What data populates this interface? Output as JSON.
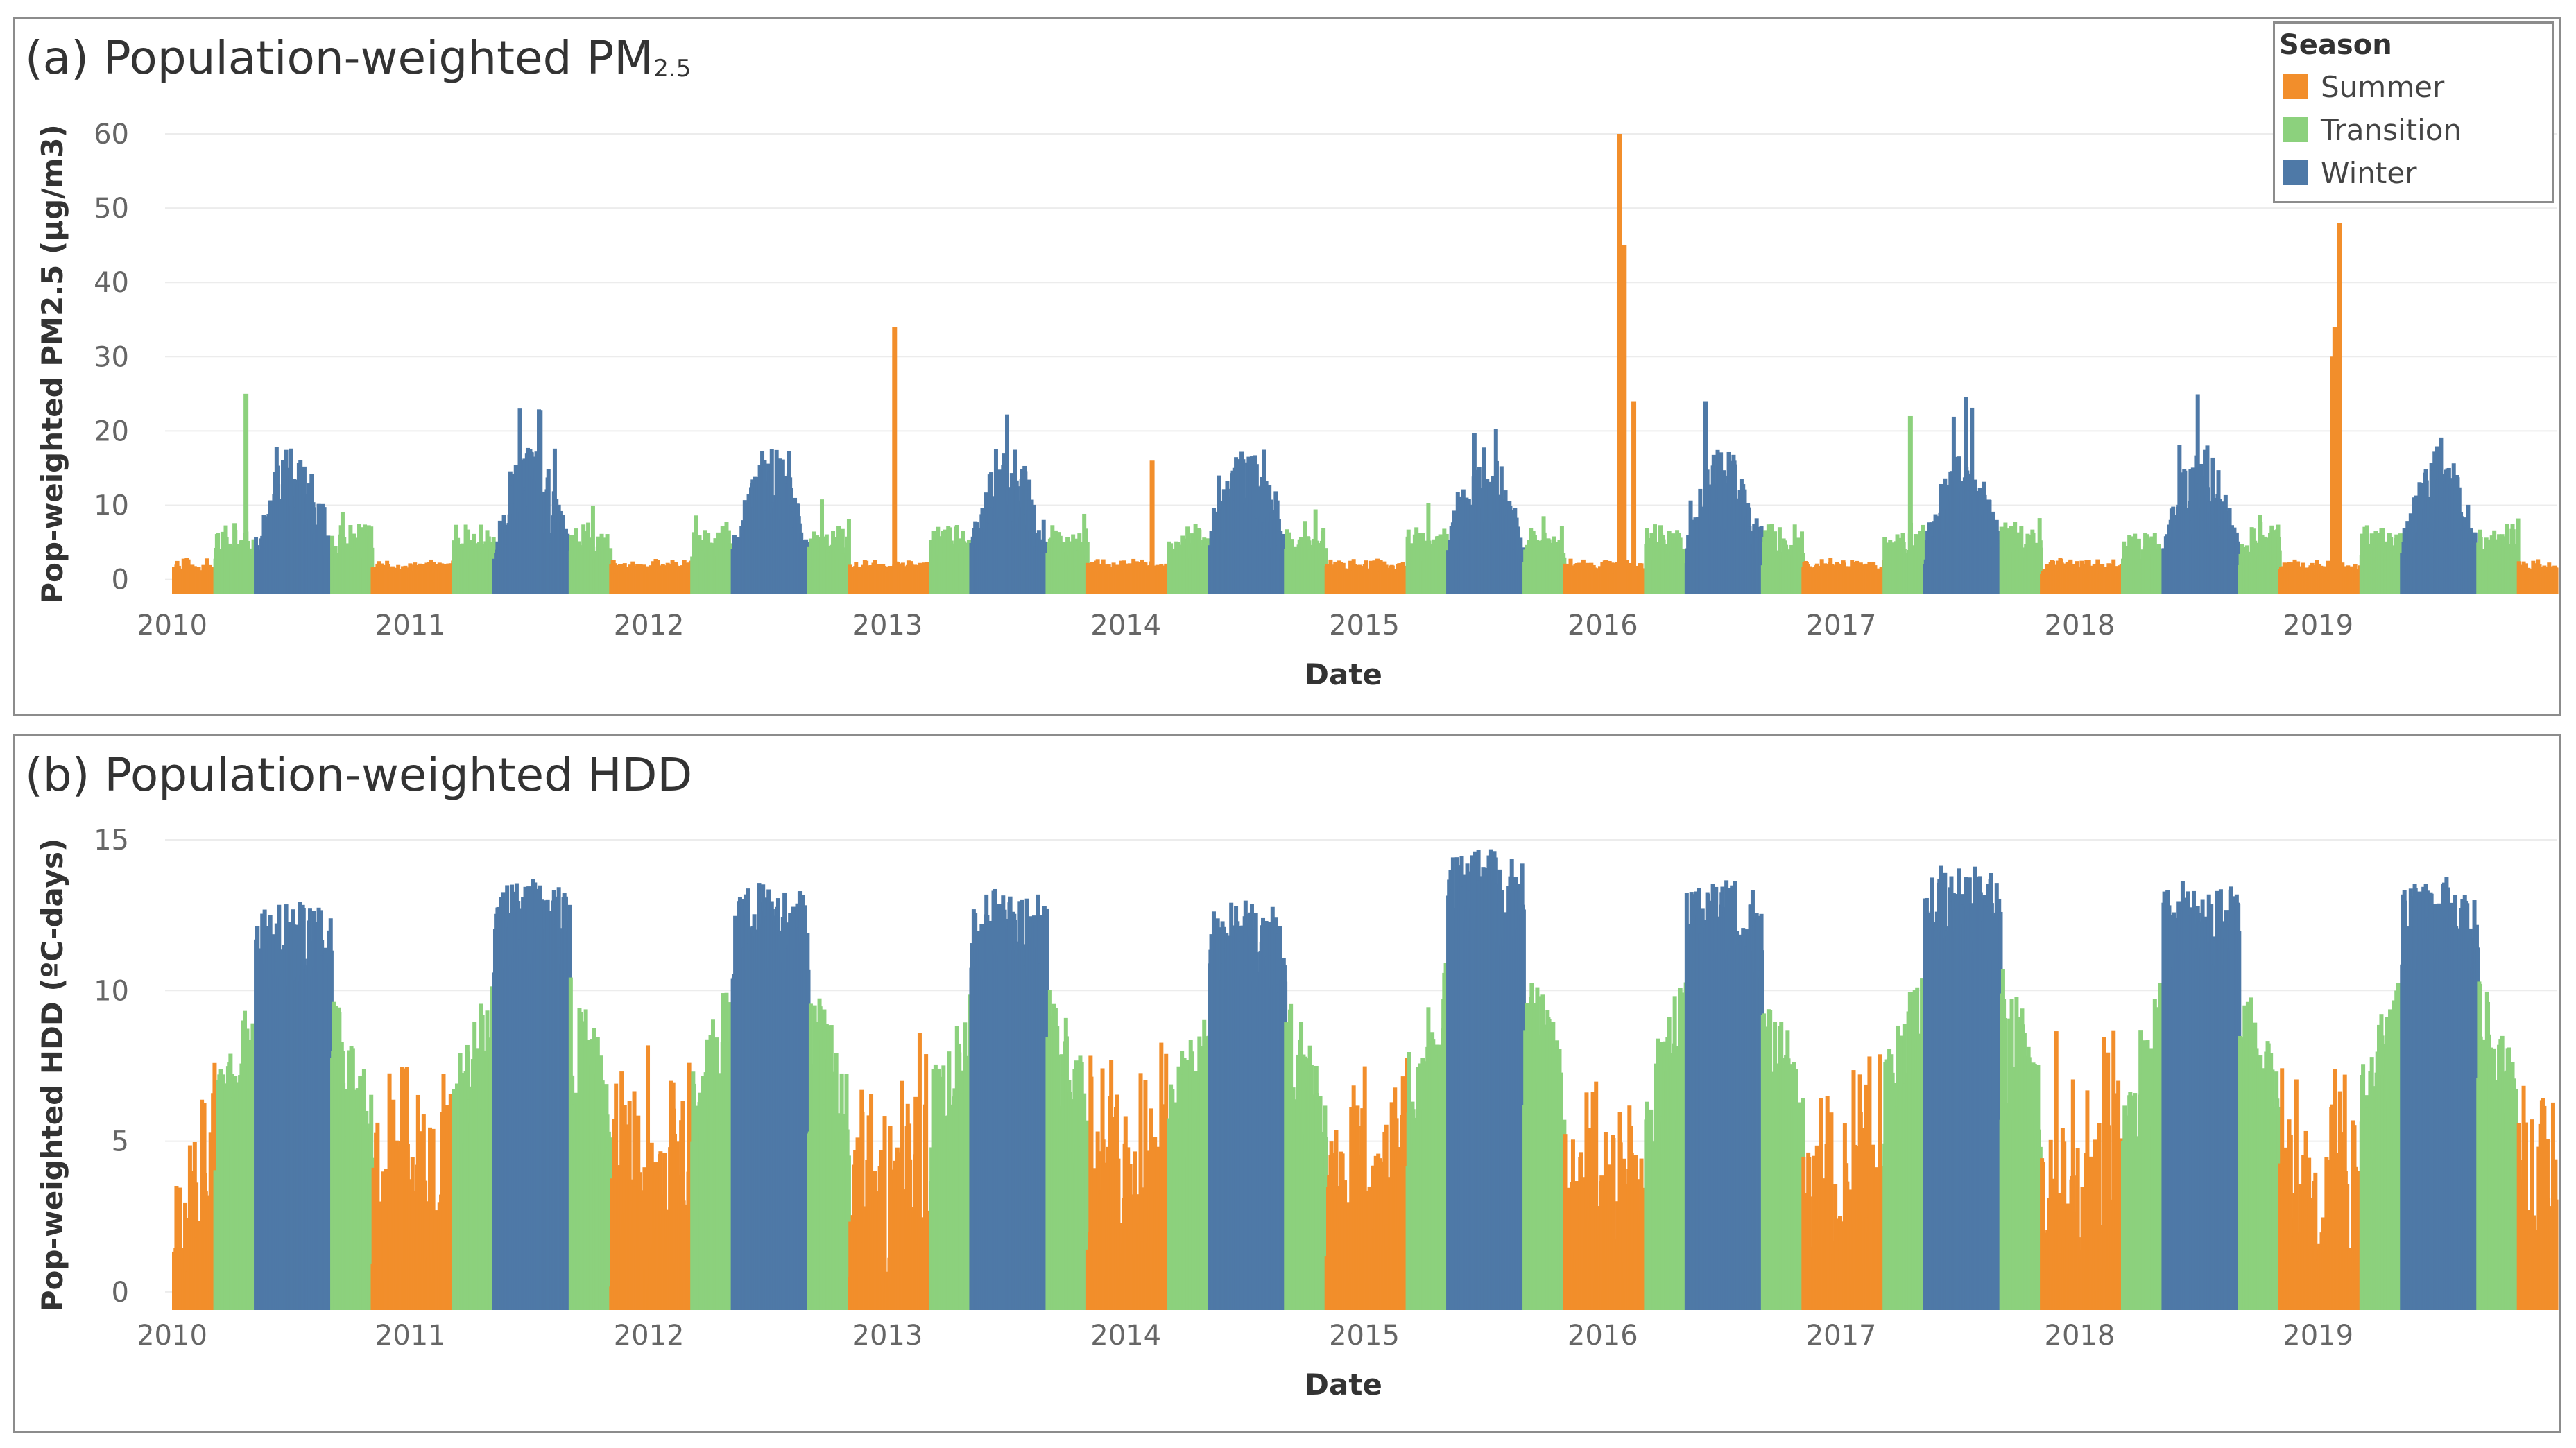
{
  "colors": {
    "Summer": "#f28e2b",
    "Transition": "#8cd17d",
    "Winter": "#4e79a7"
  },
  "legend": {
    "title": "Season",
    "items": [
      {
        "label": "Summer",
        "color": "#f28e2b"
      },
      {
        "label": "Transition",
        "color": "#8cd17d"
      },
      {
        "label": "Winter",
        "color": "#4e79a7"
      }
    ]
  },
  "chart_data": [
    {
      "type": "bar",
      "title_main": "(a) Population-weighted PM",
      "title_sub": "2.5",
      "xlabel": "Date",
      "ylabel": "Pop-weighted PM2.5 (µg/m3)",
      "yticks": [
        0,
        10,
        20,
        30,
        40,
        50,
        60
      ],
      "ylim": [
        -2,
        60
      ],
      "xticks": [
        "2010",
        "2011",
        "2012",
        "2013",
        "2014",
        "2015",
        "2016",
        "2017",
        "2018",
        "2019"
      ],
      "xlim": [
        2010,
        2020
      ],
      "season_pattern": [
        {
          "season": "Summer",
          "start": 0.0,
          "end": 0.17
        },
        {
          "season": "Transition",
          "start": 0.17,
          "end": 0.34
        },
        {
          "season": "Winter",
          "start": 0.34,
          "end": 0.66
        },
        {
          "season": "Transition",
          "start": 0.66,
          "end": 0.83
        },
        {
          "season": "Summer",
          "start": 0.83,
          "end": 1.0
        }
      ],
      "typical_peak": {
        "Summer": 3,
        "Transition": 8,
        "Winter": 18
      },
      "spikes": [
        {
          "x": 2010.3,
          "value": 25,
          "season": "Transition"
        },
        {
          "x": 2013.02,
          "value": 34,
          "season": "Summer"
        },
        {
          "x": 2014.1,
          "value": 16,
          "season": "Summer"
        },
        {
          "x": 2016.06,
          "value": 60,
          "season": "Summer"
        },
        {
          "x": 2016.08,
          "value": 45,
          "season": "Summer"
        },
        {
          "x": 2016.12,
          "value": 24,
          "season": "Summer"
        },
        {
          "x": 2016.42,
          "value": 24,
          "season": "Winter"
        },
        {
          "x": 2017.28,
          "value": 22,
          "season": "Transition"
        },
        {
          "x": 2019.08,
          "value": 48,
          "season": "Summer"
        },
        {
          "x": 2019.06,
          "value": 34,
          "season": "Summer"
        },
        {
          "x": 2019.05,
          "value": 30,
          "season": "Summer"
        }
      ]
    },
    {
      "type": "bar",
      "title_main": "(b) Population-weighted HDD",
      "xlabel": "Date",
      "ylabel": "Pop-weighted HDD (ºC-days)",
      "yticks": [
        0,
        5,
        10,
        15
      ],
      "ylim": [
        -0.6,
        15
      ],
      "xticks": [
        "2010",
        "2011",
        "2012",
        "2013",
        "2014",
        "2015",
        "2016",
        "2017",
        "2018",
        "2019"
      ],
      "xlim": [
        2010,
        2020
      ],
      "season_pattern": [
        {
          "season": "Summer",
          "start": 0.0,
          "end": 0.17
        },
        {
          "season": "Transition",
          "start": 0.17,
          "end": 0.34
        },
        {
          "season": "Winter",
          "start": 0.34,
          "end": 0.66
        },
        {
          "season": "Transition",
          "start": 0.66,
          "end": 0.83
        },
        {
          "season": "Summer",
          "start": 0.83,
          "end": 1.0
        }
      ],
      "yearly_peak": [
        13.0,
        13.7,
        13.7,
        13.5,
        13.0,
        14.8,
        13.7,
        14.3,
        13.8,
        13.8
      ]
    }
  ]
}
